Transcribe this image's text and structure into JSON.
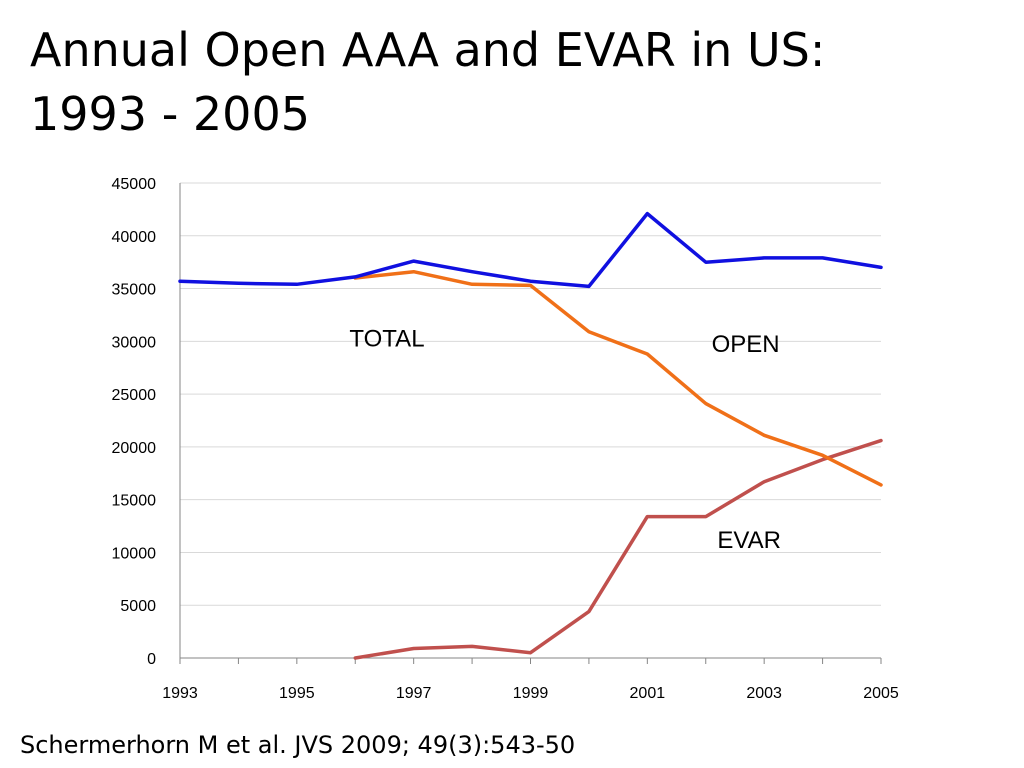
{
  "title": {
    "line1": "Annual Open AAA and EVAR in US:",
    "line2": "1993 - 2005"
  },
  "citation": "Schermerhorn M et al. JVS 2009; 49(3):543-50",
  "chart_data": {
    "type": "line",
    "title": "",
    "xlabel": "",
    "ylabel": "",
    "xlim": [
      1993,
      2005
    ],
    "ylim": [
      0,
      45000
    ],
    "y_ticks": [
      0,
      5000,
      10000,
      15000,
      20000,
      25000,
      30000,
      35000,
      40000,
      45000
    ],
    "x_tick_labels": [
      1993,
      1995,
      1997,
      1999,
      2001,
      2003,
      2005
    ],
    "grid": "horizontal",
    "legend": "none",
    "series": [
      {
        "name": "TOTAL",
        "color": "#1010E0",
        "x": [
          1993,
          1994,
          1995,
          1996,
          1997,
          1998,
          1999,
          2000,
          2001,
          2002,
          2003,
          2004,
          2005
        ],
        "values": [
          35700,
          35500,
          35400,
          36100,
          37600,
          36600,
          35700,
          35200,
          42100,
          37500,
          37900,
          37900,
          37000
        ]
      },
      {
        "name": "OPEN",
        "color": "#F07018",
        "x": [
          1996,
          1997,
          1998,
          1999,
          2000,
          2001,
          2002,
          2003,
          2004,
          2005
        ],
        "values": [
          36000,
          36600,
          35400,
          35300,
          30900,
          28800,
          24100,
          21100,
          19200,
          16400
        ]
      },
      {
        "name": "EVAR",
        "color": "#C0504D",
        "x": [
          1996,
          1997,
          1998,
          1999,
          2000,
          2001,
          2002,
          2003,
          2004,
          2005
        ],
        "values": [
          0,
          900,
          1100,
          500,
          4400,
          13400,
          13400,
          16700,
          18800,
          20600
        ]
      }
    ],
    "annotations": [
      {
        "text": "TOTAL",
        "x": 1995.9,
        "y": 29500
      },
      {
        "text": "OPEN",
        "x": 2002.1,
        "y": 29000
      },
      {
        "text": "EVAR",
        "x": 2002.2,
        "y": 10400
      }
    ]
  }
}
